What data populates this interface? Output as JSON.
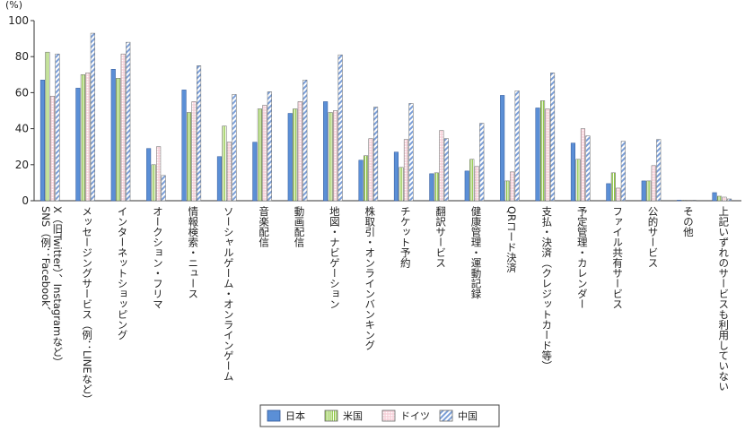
{
  "chart_data": {
    "type": "bar",
    "unit_label": "(%)",
    "ylim": [
      0,
      100
    ],
    "yticks": [
      "0",
      "20",
      "40",
      "60",
      "80",
      "100"
    ],
    "legend_position": "bottom",
    "grid": false,
    "categories": [
      [
        "SNS（例：Facebook、",
        "X（旧Twitter）、Instagramなど）"
      ],
      [
        "メッセージングサービス（例：LINEなど）"
      ],
      [
        "インターネットショッピング"
      ],
      [
        "オークション・フリマ"
      ],
      [
        "情報検索・ニュース"
      ],
      [
        "ソーシャルゲーム・オンラインゲーム"
      ],
      [
        "音楽配信"
      ],
      [
        "動画配信"
      ],
      [
        "地図・ナビゲーション"
      ],
      [
        "株取引・オンラインバンキング"
      ],
      [
        "チケット予約"
      ],
      [
        "翻訳サービス"
      ],
      [
        "健康管理・運動記録"
      ],
      [
        "QRコード決済"
      ],
      [
        "支払・決済（クレジットカード等）"
      ],
      [
        "予定管理・カレンダー"
      ],
      [
        "ファイル共有サービス"
      ],
      [
        "公的サービス"
      ],
      [
        "その他"
      ],
      [
        "上記いずれのサービスも利用していない"
      ]
    ],
    "series": [
      {
        "name": "日本",
        "color": "#5b8fd6",
        "pattern": "solid",
        "values": [
          67,
          62.5,
          73,
          29,
          61.5,
          24.5,
          32.5,
          48.5,
          55,
          22.5,
          27,
          15,
          16.5,
          58.5,
          51.5,
          32,
          9.5,
          11,
          0.2,
          4.5
        ]
      },
      {
        "name": "米国",
        "color": "#9bd14a",
        "pattern": "vstripe",
        "values": [
          82.5,
          70,
          68,
          20,
          49,
          41.5,
          51,
          51,
          49,
          25,
          18.5,
          15.5,
          23,
          11,
          55.5,
          23,
          15.5,
          11,
          0.2,
          2.5
        ]
      },
      {
        "name": "ドイツ",
        "color": "#e8a8b8",
        "pattern": "dots",
        "values": [
          58,
          71,
          81.5,
          30,
          55,
          32.5,
          53,
          55,
          50,
          34.5,
          34,
          39,
          19,
          16,
          51,
          40,
          7,
          19.5,
          0.3,
          2
        ]
      },
      {
        "name": "中国",
        "color": "#7b9fd8",
        "pattern": "diag",
        "values": [
          81.5,
          93,
          88,
          14,
          75,
          59,
          60.5,
          67,
          81,
          52,
          54,
          34.5,
          43,
          61,
          71,
          36,
          33,
          34,
          0.1,
          1
        ]
      }
    ]
  }
}
